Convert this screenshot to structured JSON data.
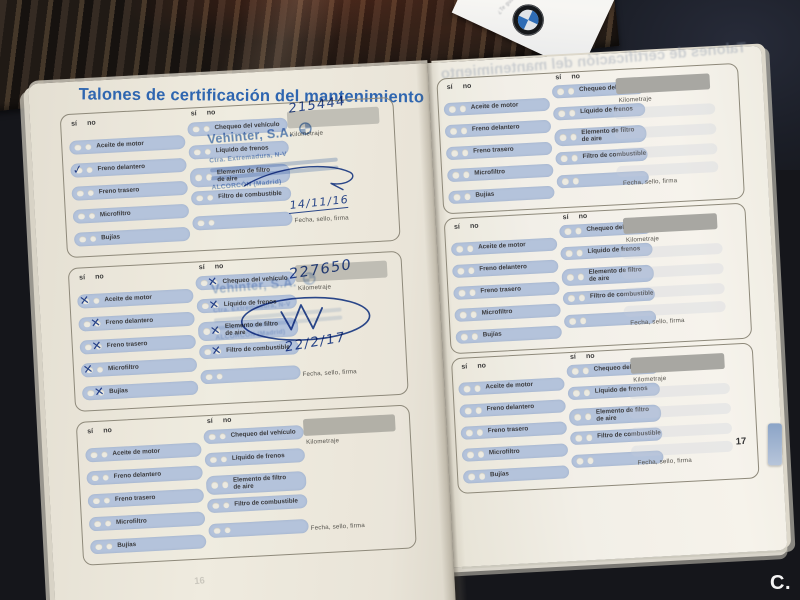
{
  "header": {
    "title": "Talones de certificación del mantenimiento"
  },
  "photo": {
    "watermark": "C.",
    "bmw_slogan": "¿Te gusta conducir?"
  },
  "checklist": {
    "yes_label": "sí",
    "no_label": "no",
    "left_items": [
      "Aceite de motor",
      "Freno delantero",
      "Freno trasero",
      "Microfiltro",
      "Bujías"
    ],
    "right_items": [
      "Chequeo del vehículo",
      "Líquido de frenos",
      "Elemento de filtro de aire",
      "Filtro de combustible"
    ],
    "kilometraje_label": "Kilometraje",
    "footer_label": "Fecha, sello, firma"
  },
  "stamp": {
    "name": "Vehinter, S.A.",
    "address_line": "Ctra. Extremadura, N-V",
    "city_line": "ALCORCÓN (Madrid)"
  },
  "left_page": {
    "page_number": "16",
    "blocks": [
      {
        "km_value": "215444",
        "date": "14/11/16",
        "stamp": "strong",
        "signature": "squiggle",
        "marks": [
          {
            "col": "left",
            "row": 1,
            "circle": 0,
            "glyph": "✓"
          }
        ]
      },
      {
        "km_value": "227650",
        "date": "22/2/17",
        "stamp": "faint",
        "signature": "w-initial",
        "marks": [
          {
            "col": "left",
            "row": 0,
            "circle": 0,
            "glyph": "✕"
          },
          {
            "col": "left",
            "row": 1,
            "circle": 1,
            "glyph": "✕"
          },
          {
            "col": "left",
            "row": 2,
            "circle": 1,
            "glyph": "✕"
          },
          {
            "col": "left",
            "row": 3,
            "circle": 0,
            "glyph": "✕"
          },
          {
            "col": "left",
            "row": 4,
            "circle": 1,
            "glyph": "✕"
          },
          {
            "col": "right",
            "row": 0,
            "circle": 1,
            "glyph": "✕"
          },
          {
            "col": "right",
            "row": 1,
            "circle": 1,
            "glyph": "✕"
          },
          {
            "col": "right",
            "row": 2,
            "circle": 1,
            "glyph": "✕"
          },
          {
            "col": "right",
            "row": 3,
            "circle": 1,
            "glyph": "✕"
          }
        ]
      },
      {
        "km_value": "",
        "date": "",
        "stamp": null,
        "signature": null,
        "marks": []
      }
    ]
  },
  "right_page": {
    "page_number": "17",
    "blocks": [
      {
        "km_value": "",
        "date": "",
        "stamp": null,
        "signature": null,
        "marks": []
      },
      {
        "km_value": "",
        "date": "",
        "stamp": null,
        "signature": null,
        "marks": []
      },
      {
        "km_value": "",
        "date": "",
        "stamp": null,
        "signature": null,
        "marks": []
      }
    ]
  }
}
